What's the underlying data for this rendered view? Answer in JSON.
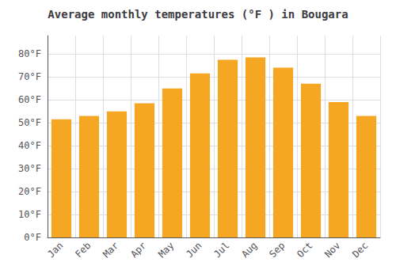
{
  "chart_data": {
    "type": "bar",
    "title": "Average monthly temperatures (°F ) in Bougara",
    "categories": [
      "Jan",
      "Feb",
      "Mar",
      "Apr",
      "May",
      "Jun",
      "Jul",
      "Aug",
      "Sep",
      "Oct",
      "Nov",
      "Dec"
    ],
    "values": [
      51.5,
      53.0,
      55.0,
      58.5,
      65.0,
      71.5,
      77.5,
      78.5,
      74.0,
      67.0,
      59.0,
      53.0
    ],
    "color": "#F5A623",
    "ylim": [
      0,
      88
    ],
    "yticks": [
      {
        "value": 0,
        "label": "0°F"
      },
      {
        "value": 10,
        "label": "10°F"
      },
      {
        "value": 20,
        "label": "20°F"
      },
      {
        "value": 30,
        "label": "30°F"
      },
      {
        "value": 40,
        "label": "40°F"
      },
      {
        "value": 50,
        "label": "50°F"
      },
      {
        "value": 60,
        "label": "60°F"
      },
      {
        "value": 70,
        "label": "70°F"
      },
      {
        "value": 80,
        "label": "80°F"
      }
    ],
    "grid": true
  }
}
